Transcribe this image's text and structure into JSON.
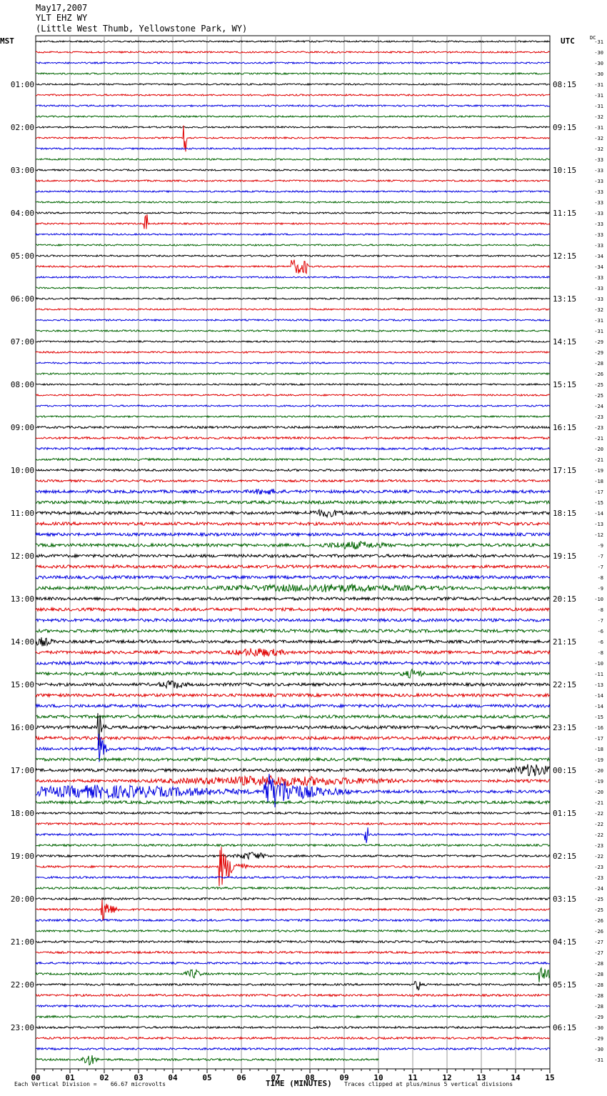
{
  "header": {
    "date": "May17,2007",
    "station": "YLT EHZ WY",
    "location": "(Little West Thumb, Yellowstone Park, WY)"
  },
  "chart_data": {
    "type": "line",
    "left_label": "MST",
    "right_label": "UTC",
    "dc_label": "DC",
    "xlabel": "TIME (MINUTES)",
    "xlim": [
      0,
      15
    ],
    "x_ticks": [
      "00",
      "01",
      "02",
      "03",
      "04",
      "05",
      "06",
      "07",
      "08",
      "09",
      "10",
      "11",
      "12",
      "13",
      "14",
      "15"
    ],
    "rows_per_hour": 4,
    "row_count": 96,
    "last_row_end_minute": 10,
    "trace_colors": [
      "#000000",
      "#e00000",
      "#0000e0",
      "#006400"
    ],
    "left_hours": [
      "01:00",
      "02:00",
      "03:00",
      "04:00",
      "05:00",
      "06:00",
      "07:00",
      "08:00",
      "09:00",
      "10:00",
      "11:00",
      "12:00",
      "13:00",
      "14:00",
      "15:00",
      "16:00",
      "17:00",
      "18:00",
      "19:00",
      "20:00",
      "21:00",
      "22:00",
      "23:00"
    ],
    "right_hours": [
      "08:15",
      "09:15",
      "10:15",
      "11:15",
      "12:15",
      "13:15",
      "14:15",
      "15:15",
      "16:15",
      "17:15",
      "18:15",
      "19:15",
      "20:15",
      "21:15",
      "22:15",
      "23:15",
      "00:15",
      "01:15",
      "02:15",
      "03:15",
      "04:15",
      "05:15",
      "06:15"
    ],
    "dc_values": [
      "-31",
      "-30",
      "-30",
      "-30",
      "-31",
      "-31",
      "-31",
      "-32",
      "-31",
      "-32",
      "-32",
      "-33",
      "-33",
      "-33",
      "-33",
      "-33",
      "-33",
      "-33",
      "-33",
      "-33",
      "-34",
      "-34",
      "-33",
      "-33",
      "-33",
      "-32",
      "-31",
      "-31",
      "-29",
      "-29",
      "-28",
      "-26",
      "-25",
      "-25",
      "-24",
      "-23",
      "-23",
      "-21",
      "-20",
      "-21",
      "-19",
      "-18",
      "-17",
      "-15",
      "-14",
      "-13",
      "-12",
      "-9",
      "-7",
      "-7",
      "-8",
      "-9",
      "-10",
      "-8",
      "-7",
      "-6",
      "-6",
      "-8",
      "-10",
      "-11",
      "-13",
      "-14",
      "-14",
      "-15",
      "-16",
      "-17",
      "-18",
      "-19",
      "-20",
      "-19",
      "-20",
      "-21",
      "-22",
      "-22",
      "-22",
      "-23",
      "-22",
      "-23",
      "-23",
      "-24",
      "-25",
      "-25",
      "-26",
      "-26",
      "-27",
      "-27",
      "-28",
      "-28",
      "-28",
      "-28",
      "-28",
      "-29",
      "-30",
      "-29",
      "-30",
      "-31"
    ],
    "events": [
      {
        "row": 9,
        "minute": 4.35,
        "amp": 24,
        "len": 0.05,
        "kind": "spike"
      },
      {
        "row": 17,
        "minute": 3.2,
        "amp": 14,
        "len": 0.05,
        "kind": "spike"
      },
      {
        "row": 21,
        "minute": 7.7,
        "amp": 10,
        "len": 0.25,
        "kind": "spike"
      },
      {
        "row": 42,
        "minute": 6.7,
        "amp": 3,
        "len": 0.6,
        "kind": "burst"
      },
      {
        "row": 44,
        "minute": 8.5,
        "amp": 4,
        "len": 0.7,
        "kind": "burst"
      },
      {
        "row": 47,
        "minute": 9.3,
        "amp": 4,
        "len": 1.2,
        "kind": "burst"
      },
      {
        "row": 51,
        "minute": 8.5,
        "amp": 4,
        "len": 4.0,
        "kind": "burst"
      },
      {
        "row": 56,
        "minute": 0.2,
        "amp": 5,
        "len": 0.4,
        "kind": "burst"
      },
      {
        "row": 57,
        "minute": 6.5,
        "amp": 5,
        "len": 1.0,
        "kind": "burst"
      },
      {
        "row": 59,
        "minute": 11.0,
        "amp": 5,
        "len": 0.4,
        "kind": "burst"
      },
      {
        "row": 60,
        "minute": 4.0,
        "amp": 5,
        "len": 0.5,
        "kind": "burst"
      },
      {
        "row": 64,
        "minute": 1.85,
        "amp": 26,
        "len": 0.2,
        "kind": "quake"
      },
      {
        "row": 66,
        "minute": 1.85,
        "amp": 28,
        "len": 0.3,
        "kind": "quake"
      },
      {
        "row": 68,
        "minute": 14.5,
        "amp": 8,
        "len": 0.8,
        "kind": "burst"
      },
      {
        "row": 69,
        "minute": 7.0,
        "amp": 6,
        "len": 4.0,
        "kind": "burst"
      },
      {
        "row": 70,
        "minute": 6.7,
        "amp": 28,
        "len": 2.5,
        "kind": "quake"
      },
      {
        "row": 70,
        "minute": 2.0,
        "amp": 8,
        "len": 5.0,
        "kind": "burst"
      },
      {
        "row": 74,
        "minute": 9.65,
        "amp": 14,
        "len": 0.05,
        "kind": "spike"
      },
      {
        "row": 76,
        "minute": 6.3,
        "amp": 5,
        "len": 0.6,
        "kind": "burst"
      },
      {
        "row": 77,
        "minute": 5.4,
        "amp": 30,
        "len": 0.8,
        "kind": "quake"
      },
      {
        "row": 81,
        "minute": 1.95,
        "amp": 24,
        "len": 0.5,
        "kind": "quake"
      },
      {
        "row": 87,
        "minute": 4.6,
        "amp": 6,
        "len": 0.3,
        "kind": "burst"
      },
      {
        "row": 87,
        "minute": 14.7,
        "amp": 18,
        "len": 0.5,
        "kind": "quake"
      },
      {
        "row": 88,
        "minute": 11.15,
        "amp": 8,
        "len": 0.15,
        "kind": "burst"
      },
      {
        "row": 95,
        "minute": 1.55,
        "amp": 8,
        "len": 0.3,
        "kind": "burst"
      }
    ],
    "footer_scale": "Each Vertical Division =    66.67 microvolts",
    "footer_clip": "Traces clipped at plus/minus 5 vertical divisions"
  }
}
